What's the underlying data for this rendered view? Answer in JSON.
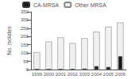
{
  "chart_data": {
    "type": "bar",
    "categories": [
      "1999",
      "2000",
      "2001",
      "2002",
      "2003",
      "2004",
      "2005",
      "2006"
    ],
    "series": [
      {
        "name": "Other MRSA",
        "color": "#f0f0f0",
        "values": [
          105,
          170,
          195,
          160,
          190,
          230,
          260,
          285
        ]
      },
      {
        "name": "CA-MRSA",
        "color": "#1a1a1a",
        "values": [
          0,
          0,
          0,
          2,
          5,
          20,
          15,
          80
        ]
      }
    ],
    "ylabel": "No. isolates",
    "ylim": [
      0,
      350
    ],
    "yticks": [
      0,
      50,
      100,
      150,
      200,
      250,
      300,
      350
    ],
    "legend": "upper left",
    "grid": false
  }
}
